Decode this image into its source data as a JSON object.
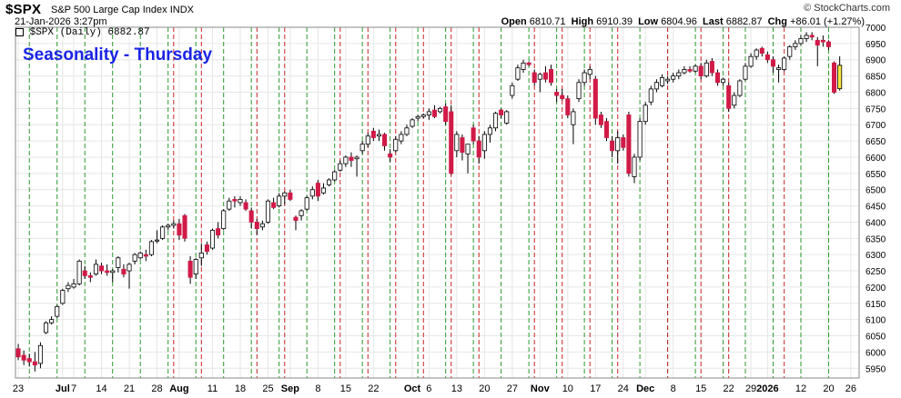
{
  "header": {
    "symbol": "$SPX",
    "name": "S&P 500 Large Cap Index",
    "exchange": "INDX",
    "date_time": "21-Jan-2026 3:27pm",
    "credit": "© StockCharts.com",
    "ohlc": {
      "open_label": "Open",
      "open": "6810.71",
      "high_label": "High",
      "high": "6910.39",
      "low_label": "Low",
      "low": "6804.96",
      "last_label": "Last",
      "last": "6882.87",
      "chg_label": "Chg",
      "chg": "+86.01 (+1.27%)"
    }
  },
  "legend": {
    "text": "$SPX (Daily) 6882.87"
  },
  "overlay_title": "Seasonality - Thursday",
  "colors": {
    "up": "#ffffff",
    "down": "#d11a47",
    "highlight": "#f5e642",
    "thursday_line": "#2a9a2a",
    "friday_line": "#cc2222",
    "overlay_text": "#1a24e6",
    "grid": "#e6e6e6"
  },
  "chart_data": {
    "type": "candlestick",
    "title": "Seasonality - Thursday",
    "ylim": [
      5920,
      7000
    ],
    "y_ticks": [
      5950,
      6000,
      6050,
      6100,
      6150,
      6200,
      6250,
      6300,
      6350,
      6400,
      6450,
      6500,
      6550,
      6600,
      6650,
      6700,
      6750,
      6800,
      6850,
      6900,
      6950,
      7000
    ],
    "x_ticks": [
      {
        "label": "23",
        "bold": false,
        "day": 0
      },
      {
        "label": "Jul",
        "bold": true,
        "day": 8
      },
      {
        "label": "7",
        "bold": false,
        "day": 10
      },
      {
        "label": "14",
        "bold": false,
        "day": 15
      },
      {
        "label": "21",
        "bold": false,
        "day": 20
      },
      {
        "label": "28",
        "bold": false,
        "day": 25
      },
      {
        "label": "Aug",
        "bold": true,
        "day": 29
      },
      {
        "label": "11",
        "bold": false,
        "day": 35
      },
      {
        "label": "18",
        "bold": false,
        "day": 40
      },
      {
        "label": "25",
        "bold": false,
        "day": 45
      },
      {
        "label": "Sep",
        "bold": true,
        "day": 49
      },
      {
        "label": "8",
        "bold": false,
        "day": 54
      },
      {
        "label": "15",
        "bold": false,
        "day": 59
      },
      {
        "label": "22",
        "bold": false,
        "day": 64
      },
      {
        "label": "Oct",
        "bold": true,
        "day": 71
      },
      {
        "label": "6",
        "bold": false,
        "day": 74
      },
      {
        "label": "13",
        "bold": false,
        "day": 79
      },
      {
        "label": "20",
        "bold": false,
        "day": 84
      },
      {
        "label": "27",
        "bold": false,
        "day": 89
      },
      {
        "label": "Nov",
        "bold": true,
        "day": 94
      },
      {
        "label": "10",
        "bold": false,
        "day": 99
      },
      {
        "label": "17",
        "bold": false,
        "day": 104
      },
      {
        "label": "24",
        "bold": false,
        "day": 109
      },
      {
        "label": "Dec",
        "bold": true,
        "day": 113
      },
      {
        "label": "8",
        "bold": false,
        "day": 118
      },
      {
        "label": "15",
        "bold": false,
        "day": 123
      },
      {
        "label": "22",
        "bold": false,
        "day": 128
      },
      {
        "label": "29",
        "bold": false,
        "day": 132
      },
      {
        "label": "2026",
        "bold": true,
        "day": 135
      },
      {
        "label": "12",
        "bold": false,
        "day": 141
      },
      {
        "label": "20",
        "bold": false,
        "day": 146
      },
      {
        "label": "26",
        "bold": false,
        "day": 150
      }
    ],
    "thursday_days": [
      2,
      7,
      12,
      17,
      22,
      27,
      32,
      37,
      42,
      47,
      52,
      57,
      62,
      67,
      72,
      77,
      82,
      87,
      92,
      97,
      102,
      107,
      112,
      117,
      122,
      127,
      131,
      136,
      141,
      146
    ],
    "friday_days": [
      28,
      33,
      43,
      48,
      58,
      63,
      68,
      73,
      78,
      83,
      93,
      98,
      103,
      108,
      117,
      123,
      128,
      138
    ],
    "candles": [
      {
        "o": 6010,
        "h": 6025,
        "l": 5975,
        "c": 5985
      },
      {
        "o": 5990,
        "h": 6005,
        "l": 5960,
        "c": 5975
      },
      {
        "o": 5980,
        "h": 5995,
        "l": 5955,
        "c": 5970
      },
      {
        "o": 5970,
        "h": 6000,
        "l": 5940,
        "c": 5960
      },
      {
        "o": 5965,
        "h": 6030,
        "l": 5950,
        "c": 6020
      },
      {
        "o": 6060,
        "h": 6095,
        "l": 6055,
        "c": 6090
      },
      {
        "o": 6090,
        "h": 6110,
        "l": 6085,
        "c": 6100
      },
      {
        "o": 6110,
        "h": 6145,
        "l": 6105,
        "c": 6140
      },
      {
        "o": 6150,
        "h": 6195,
        "l": 6145,
        "c": 6190
      },
      {
        "o": 6195,
        "h": 6215,
        "l": 6185,
        "c": 6205
      },
      {
        "o": 6200,
        "h": 6225,
        "l": 6195,
        "c": 6210
      },
      {
        "o": 6210,
        "h": 6285,
        "l": 6205,
        "c": 6280
      },
      {
        "o": 6250,
        "h": 6265,
        "l": 6225,
        "c": 6235
      },
      {
        "o": 6235,
        "h": 6245,
        "l": 6215,
        "c": 6230
      },
      {
        "o": 6240,
        "h": 6285,
        "l": 6235,
        "c": 6270
      },
      {
        "o": 6265,
        "h": 6275,
        "l": 6240,
        "c": 6250
      },
      {
        "o": 6250,
        "h": 6270,
        "l": 6235,
        "c": 6245
      },
      {
        "o": 6245,
        "h": 6255,
        "l": 6215,
        "c": 6250
      },
      {
        "o": 6260,
        "h": 6295,
        "l": 6245,
        "c": 6290
      },
      {
        "o": 6255,
        "h": 6270,
        "l": 6230,
        "c": 6240
      },
      {
        "o": 6250,
        "h": 6275,
        "l": 6195,
        "c": 6270
      },
      {
        "o": 6280,
        "h": 6305,
        "l": 6270,
        "c": 6300
      },
      {
        "o": 6290,
        "h": 6310,
        "l": 6285,
        "c": 6305
      },
      {
        "o": 6300,
        "h": 6315,
        "l": 6280,
        "c": 6295
      },
      {
        "o": 6300,
        "h": 6345,
        "l": 6295,
        "c": 6340
      },
      {
        "o": 6345,
        "h": 6375,
        "l": 6335,
        "c": 6345
      },
      {
        "o": 6350,
        "h": 6390,
        "l": 6345,
        "c": 6385
      },
      {
        "o": 6385,
        "h": 6395,
        "l": 6375,
        "c": 6390
      },
      {
        "o": 6390,
        "h": 6405,
        "l": 6380,
        "c": 6395
      },
      {
        "o": 6395,
        "h": 6410,
        "l": 6345,
        "c": 6360
      },
      {
        "o": 6420,
        "h": 6425,
        "l": 6340,
        "c": 6350
      },
      {
        "o": 6280,
        "h": 6295,
        "l": 6210,
        "c": 6230
      },
      {
        "o": 6240,
        "h": 6290,
        "l": 6225,
        "c": 6285
      },
      {
        "o": 6290,
        "h": 6335,
        "l": 6265,
        "c": 6305
      },
      {
        "o": 6330,
        "h": 6340,
        "l": 6300,
        "c": 6310
      },
      {
        "o": 6320,
        "h": 6380,
        "l": 6315,
        "c": 6375
      },
      {
        "o": 6380,
        "h": 6400,
        "l": 6350,
        "c": 6360
      },
      {
        "o": 6380,
        "h": 6440,
        "l": 6375,
        "c": 6435
      },
      {
        "o": 6440,
        "h": 6475,
        "l": 6435,
        "c": 6465
      },
      {
        "o": 6470,
        "h": 6480,
        "l": 6445,
        "c": 6465
      },
      {
        "o": 6460,
        "h": 6480,
        "l": 6450,
        "c": 6470
      },
      {
        "o": 6460,
        "h": 6470,
        "l": 6435,
        "c": 6440
      },
      {
        "o": 6435,
        "h": 6445,
        "l": 6380,
        "c": 6400
      },
      {
        "o": 6400,
        "h": 6410,
        "l": 6360,
        "c": 6380
      },
      {
        "o": 6385,
        "h": 6405,
        "l": 6375,
        "c": 6395
      },
      {
        "o": 6400,
        "h": 6470,
        "l": 6395,
        "c": 6465
      },
      {
        "o": 6460,
        "h": 6475,
        "l": 6440,
        "c": 6445
      },
      {
        "o": 6450,
        "h": 6490,
        "l": 6445,
        "c": 6480
      },
      {
        "o": 6480,
        "h": 6495,
        "l": 6455,
        "c": 6490
      },
      {
        "o": 6490,
        "h": 6500,
        "l": 6465,
        "c": 6470
      },
      {
        "o": 6415,
        "h": 6420,
        "l": 6375,
        "c": 6405
      },
      {
        "o": 6420,
        "h": 6440,
        "l": 6405,
        "c": 6435
      },
      {
        "o": 6440,
        "h": 6480,
        "l": 6435,
        "c": 6475
      },
      {
        "o": 6480,
        "h": 6510,
        "l": 6470,
        "c": 6500
      },
      {
        "o": 6520,
        "h": 6530,
        "l": 6465,
        "c": 6480
      },
      {
        "o": 6490,
        "h": 6520,
        "l": 6485,
        "c": 6505
      },
      {
        "o": 6515,
        "h": 6535,
        "l": 6510,
        "c": 6530
      },
      {
        "o": 6530,
        "h": 6560,
        "l": 6525,
        "c": 6555
      },
      {
        "o": 6560,
        "h": 6590,
        "l": 6555,
        "c": 6580
      },
      {
        "o": 6580,
        "h": 6605,
        "l": 6570,
        "c": 6600
      },
      {
        "o": 6600,
        "h": 6615,
        "l": 6570,
        "c": 6590
      },
      {
        "o": 6595,
        "h": 6605,
        "l": 6540,
        "c": 6600
      },
      {
        "o": 6620,
        "h": 6650,
        "l": 6610,
        "c": 6640
      },
      {
        "o": 6640,
        "h": 6675,
        "l": 6630,
        "c": 6665
      },
      {
        "o": 6680,
        "h": 6690,
        "l": 6650,
        "c": 6660
      },
      {
        "o": 6665,
        "h": 6685,
        "l": 6650,
        "c": 6670
      },
      {
        "o": 6670,
        "h": 6675,
        "l": 6620,
        "c": 6635
      },
      {
        "o": 6610,
        "h": 6625,
        "l": 6585,
        "c": 6600
      },
      {
        "o": 6620,
        "h": 6665,
        "l": 6615,
        "c": 6655
      },
      {
        "o": 6650,
        "h": 6680,
        "l": 6640,
        "c": 6670
      },
      {
        "o": 6670,
        "h": 6700,
        "l": 6665,
        "c": 6690
      },
      {
        "o": 6695,
        "h": 6720,
        "l": 6690,
        "c": 6715
      },
      {
        "o": 6720,
        "h": 6730,
        "l": 6710,
        "c": 6725
      },
      {
        "o": 6725,
        "h": 6735,
        "l": 6720,
        "c": 6730
      },
      {
        "o": 6730,
        "h": 6750,
        "l": 6715,
        "c": 6740
      },
      {
        "o": 6745,
        "h": 6760,
        "l": 6720,
        "c": 6725
      },
      {
        "o": 6740,
        "h": 6755,
        "l": 6735,
        "c": 6750
      },
      {
        "o": 6755,
        "h": 6765,
        "l": 6700,
        "c": 6710
      },
      {
        "o": 6740,
        "h": 6760,
        "l": 6545,
        "c": 6550
      },
      {
        "o": 6620,
        "h": 6680,
        "l": 6600,
        "c": 6670
      },
      {
        "o": 6660,
        "h": 6670,
        "l": 6590,
        "c": 6615
      },
      {
        "o": 6610,
        "h": 6640,
        "l": 6550,
        "c": 6640
      },
      {
        "o": 6690,
        "h": 6700,
        "l": 6640,
        "c": 6650
      },
      {
        "o": 6650,
        "h": 6665,
        "l": 6580,
        "c": 6600
      },
      {
        "o": 6620,
        "h": 6680,
        "l": 6595,
        "c": 6670
      },
      {
        "o": 6670,
        "h": 6700,
        "l": 6645,
        "c": 6690
      },
      {
        "o": 6690,
        "h": 6740,
        "l": 6680,
        "c": 6735
      },
      {
        "o": 6745,
        "h": 6750,
        "l": 6720,
        "c": 6730
      },
      {
        "o": 6705,
        "h": 6745,
        "l": 6700,
        "c": 6740
      },
      {
        "o": 6790,
        "h": 6830,
        "l": 6780,
        "c": 6820
      },
      {
        "o": 6840,
        "h": 6885,
        "l": 6835,
        "c": 6875
      },
      {
        "o": 6870,
        "h": 6900,
        "l": 6860,
        "c": 6890
      },
      {
        "o": 6890,
        "h": 6895,
        "l": 6880,
        "c": 6885
      },
      {
        "o": 6860,
        "h": 6870,
        "l": 6820,
        "c": 6830
      },
      {
        "o": 6840,
        "h": 6860,
        "l": 6800,
        "c": 6855
      },
      {
        "o": 6860,
        "h": 6880,
        "l": 6830,
        "c": 6840
      },
      {
        "o": 6870,
        "h": 6885,
        "l": 6820,
        "c": 6830
      },
      {
        "o": 6800,
        "h": 6810,
        "l": 6770,
        "c": 6790
      },
      {
        "o": 6790,
        "h": 6810,
        "l": 6775,
        "c": 6780
      },
      {
        "o": 6780,
        "h": 6790,
        "l": 6720,
        "c": 6730
      },
      {
        "o": 6700,
        "h": 6750,
        "l": 6640,
        "c": 6740
      },
      {
        "o": 6780,
        "h": 6840,
        "l": 6770,
        "c": 6830
      },
      {
        "o": 6830,
        "h": 6870,
        "l": 6820,
        "c": 6860
      },
      {
        "o": 6855,
        "h": 6880,
        "l": 6840,
        "c": 6870
      },
      {
        "o": 6840,
        "h": 6850,
        "l": 6700,
        "c": 6720
      },
      {
        "o": 6730,
        "h": 6740,
        "l": 6690,
        "c": 6700
      },
      {
        "o": 6710,
        "h": 6720,
        "l": 6650,
        "c": 6660
      },
      {
        "o": 6650,
        "h": 6665,
        "l": 6600,
        "c": 6620
      },
      {
        "o": 6620,
        "h": 6680,
        "l": 6580,
        "c": 6660
      },
      {
        "o": 6660,
        "h": 6670,
        "l": 6620,
        "c": 6630
      },
      {
        "o": 6730,
        "h": 6740,
        "l": 6540,
        "c": 6550
      },
      {
        "o": 6540,
        "h": 6610,
        "l": 6520,
        "c": 6600
      },
      {
        "o": 6600,
        "h": 6720,
        "l": 6590,
        "c": 6710
      },
      {
        "o": 6710,
        "h": 6770,
        "l": 6700,
        "c": 6760
      },
      {
        "o": 6770,
        "h": 6820,
        "l": 6760,
        "c": 6810
      },
      {
        "o": 6810,
        "h": 6840,
        "l": 6800,
        "c": 6830
      },
      {
        "o": 6820,
        "h": 6855,
        "l": 6815,
        "c": 6845
      },
      {
        "o": 6835,
        "h": 6850,
        "l": 6825,
        "c": 6840
      },
      {
        "o": 6840,
        "h": 6860,
        "l": 6830,
        "c": 6850
      },
      {
        "o": 6850,
        "h": 6870,
        "l": 6840,
        "c": 6860
      },
      {
        "o": 6860,
        "h": 6880,
        "l": 6855,
        "c": 6870
      },
      {
        "o": 6870,
        "h": 6880,
        "l": 6860,
        "c": 6865
      },
      {
        "o": 6865,
        "h": 6885,
        "l": 6860,
        "c": 6880
      },
      {
        "o": 6880,
        "h": 6890,
        "l": 6840,
        "c": 6850
      },
      {
        "o": 6850,
        "h": 6900,
        "l": 6845,
        "c": 6890
      },
      {
        "o": 6895,
        "h": 6905,
        "l": 6850,
        "c": 6860
      },
      {
        "o": 6860,
        "h": 6870,
        "l": 6820,
        "c": 6830
      },
      {
        "o": 6830,
        "h": 6845,
        "l": 6820,
        "c": 6840
      },
      {
        "o": 6820,
        "h": 6830,
        "l": 6740,
        "c": 6750
      },
      {
        "o": 6760,
        "h": 6800,
        "l": 6750,
        "c": 6790
      },
      {
        "o": 6790,
        "h": 6840,
        "l": 6785,
        "c": 6835
      },
      {
        "o": 6840,
        "h": 6890,
        "l": 6835,
        "c": 6880
      },
      {
        "o": 6880,
        "h": 6920,
        "l": 6875,
        "c": 6910
      },
      {
        "o": 6910,
        "h": 6935,
        "l": 6900,
        "c": 6930
      },
      {
        "o": 6935,
        "h": 6940,
        "l": 6910,
        "c": 6920
      },
      {
        "o": 6915,
        "h": 6925,
        "l": 6890,
        "c": 6900
      },
      {
        "o": 6900,
        "h": 6910,
        "l": 6860,
        "c": 6880
      },
      {
        "o": 6870,
        "h": 6885,
        "l": 6830,
        "c": 6875
      },
      {
        "o": 6870,
        "h": 6910,
        "l": 6865,
        "c": 6905
      },
      {
        "o": 6910,
        "h": 6945,
        "l": 6900,
        "c": 6940
      },
      {
        "o": 6940,
        "h": 6960,
        "l": 6930,
        "c": 6950
      },
      {
        "o": 6950,
        "h": 6975,
        "l": 6945,
        "c": 6965
      },
      {
        "o": 6965,
        "h": 6985,
        "l": 6955,
        "c": 6975
      },
      {
        "o": 6975,
        "h": 6985,
        "l": 6960,
        "c": 6970
      },
      {
        "o": 6960,
        "h": 6970,
        "l": 6880,
        "c": 6945
      },
      {
        "o": 6960,
        "h": 6975,
        "l": 6940,
        "c": 6955
      },
      {
        "o": 6955,
        "h": 6960,
        "l": 6930,
        "c": 6940
      },
      {
        "o": 6890,
        "h": 6895,
        "l": 6795,
        "c": 6800
      },
      {
        "o": 6810.71,
        "h": 6910.39,
        "l": 6804.96,
        "c": 6882.87,
        "highlight": true
      }
    ]
  }
}
